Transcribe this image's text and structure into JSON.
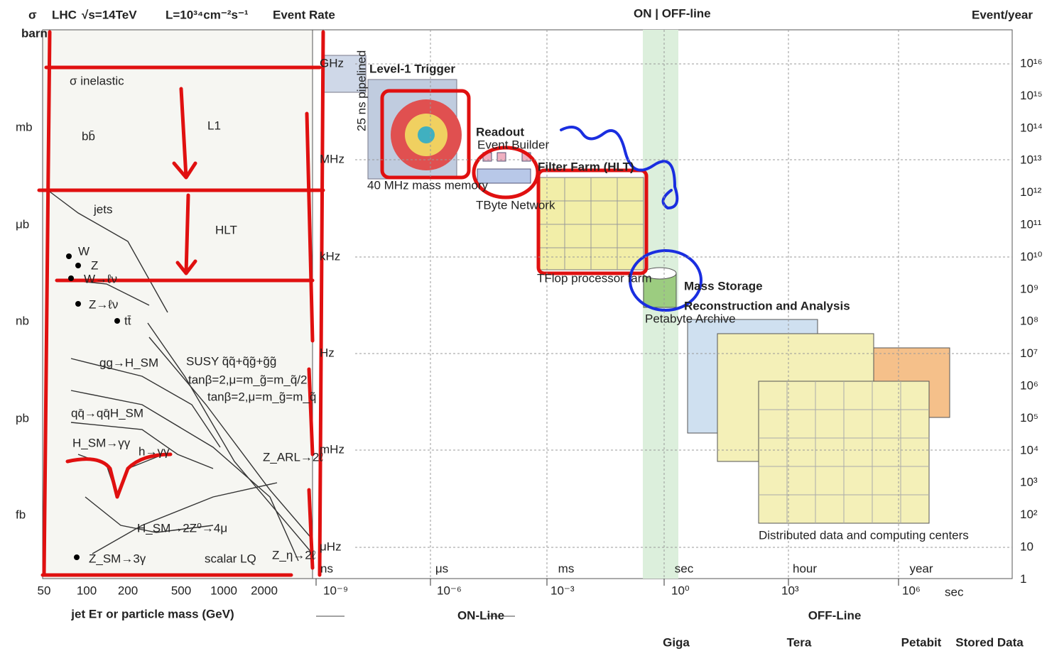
{
  "header": {
    "sigma": "σ",
    "barn": "barn",
    "lhc": "LHC",
    "energy": "√s=14TeV",
    "luminosity": "L=10³⁴cm⁻²s⁻¹",
    "event_rate": "Event Rate",
    "on_off": "ON | OFF-line",
    "event_year": "Event/year"
  },
  "cross_section_axis": {
    "labels": [
      "mb",
      "μb",
      "nb",
      "pb",
      "fb"
    ],
    "x_ticks": [
      "50",
      "100",
      "200",
      "500",
      "1000",
      "2000"
    ],
    "x_label": "jet Eᴛ or particle mass (GeV)"
  },
  "processes": [
    "σ inelastic",
    "bb̄",
    "jets",
    "W",
    "Z",
    "W→ℓν",
    "Z→ℓν",
    "tt̄",
    "gg→H_SM",
    "SUSY q̃q̃+q̃g̃+g̃g̃",
    "tanβ=2,μ=m_g̃=m_q̃/2",
    "tanβ=2,μ=m_g̃=m_q̃",
    "qq̄→qq̄H_SM",
    "H_SM→γγ",
    "h→γγ",
    "Z_ARL→2ℓ",
    "H_SM→2Z⁰→4μ",
    "Z_SM→3γ",
    "scalar LQ",
    "Z_η→2ℓ"
  ],
  "rates": [
    "GHz",
    "MHz",
    "kHz",
    "Hz",
    "mHz",
    "μHz"
  ],
  "times": [
    "ns",
    "μs",
    "ms",
    "sec",
    "hour",
    "year"
  ],
  "time_axis": {
    "ticks": [
      "10⁻⁹",
      "10⁻⁶",
      "10⁻³",
      "10⁰",
      "10³",
      "10⁶"
    ],
    "unit": "sec",
    "online": "ON-Line",
    "offline": "OFF-Line"
  },
  "data_volumes": [
    "Giga",
    "Tera",
    "Petabit",
    "Stored Data"
  ],
  "events_per_year": [
    "10¹⁶",
    "10¹⁵",
    "10¹⁴",
    "10¹³",
    "10¹²",
    "10¹¹",
    "10¹⁰",
    "10⁹",
    "10⁸",
    "10⁷",
    "10⁶",
    "10⁵",
    "10⁴",
    "10³",
    "10²",
    "10",
    "1"
  ],
  "stages": {
    "level1": "Level-1 Trigger",
    "level1_note": "40 MHz mass memory",
    "pipeline": "25 ns pipelined",
    "readout": "Readout",
    "event_builder": "Event Builder",
    "network": "TByte Network",
    "filter": "Filter Farm (HLT)",
    "farm": "TFlop processor farm",
    "storage": "Mass Storage",
    "archive": "Petabyte Archive",
    "reco": "Reconstruction and Analysis",
    "distributed": "Distributed data and computing centers"
  },
  "annotations": {
    "l1": "L1",
    "hlt": "HLT"
  }
}
